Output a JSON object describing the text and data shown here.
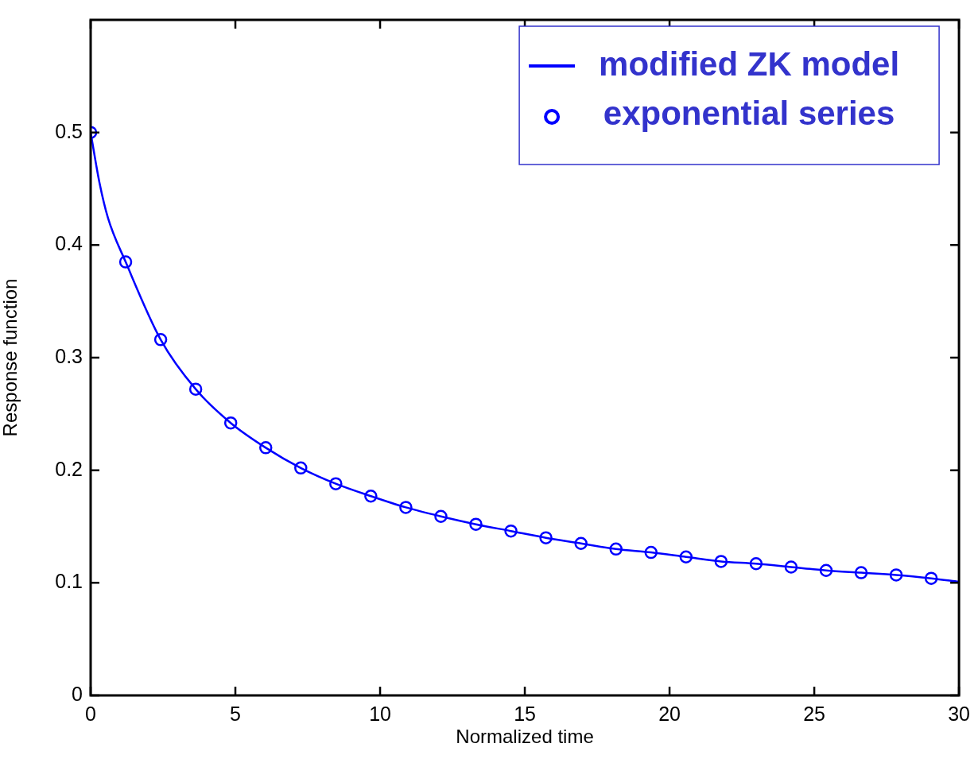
{
  "chart_data": {
    "type": "line",
    "xlabel": "Normalized time",
    "ylabel": "Response function",
    "xlim": [
      0,
      30
    ],
    "xticks": [
      0,
      5,
      10,
      15,
      20,
      25,
      30
    ],
    "ylim": [
      0,
      0.6
    ],
    "yticks": [
      0,
      0.1,
      0.2,
      0.3,
      0.4,
      0.5
    ],
    "grid": false,
    "legend": "top right",
    "series": [
      {
        "name": "modified ZK model",
        "color": "#0000ff",
        "marker": "none",
        "line_style": "solid",
        "x": [
          0,
          0.3,
          0.6,
          1.21,
          2.42,
          3.63,
          4.84,
          6.05,
          7.26,
          8.47,
          9.68,
          10.89,
          12.1,
          13.31,
          14.52,
          15.73,
          16.94,
          18.15,
          19.36,
          20.57,
          21.78,
          22.99,
          24.2,
          25.41,
          26.62,
          27.83,
          29.04,
          30
        ],
        "values": [
          0.5,
          0.456,
          0.424,
          0.385,
          0.316,
          0.272,
          0.242,
          0.22,
          0.202,
          0.188,
          0.177,
          0.167,
          0.159,
          0.152,
          0.146,
          0.14,
          0.135,
          0.13,
          0.127,
          0.123,
          0.119,
          0.117,
          0.114,
          0.111,
          0.109,
          0.107,
          0.104,
          0.101
        ]
      },
      {
        "name": "exponential series",
        "type": "scatter",
        "color": "#0000ff",
        "marker": "circle",
        "x": [
          0,
          1.21,
          2.42,
          3.63,
          4.84,
          6.05,
          7.26,
          8.47,
          9.68,
          10.89,
          12.1,
          13.31,
          14.52,
          15.73,
          16.94,
          18.15,
          19.36,
          20.57,
          21.78,
          22.99,
          24.2,
          25.41,
          26.62,
          27.83,
          29.04
        ],
        "values": [
          0.5,
          0.385,
          0.316,
          0.272,
          0.242,
          0.22,
          0.202,
          0.188,
          0.177,
          0.167,
          0.159,
          0.152,
          0.146,
          0.14,
          0.135,
          0.13,
          0.127,
          0.123,
          0.119,
          0.117,
          0.114,
          0.111,
          0.109,
          0.107,
          0.104
        ]
      }
    ]
  }
}
